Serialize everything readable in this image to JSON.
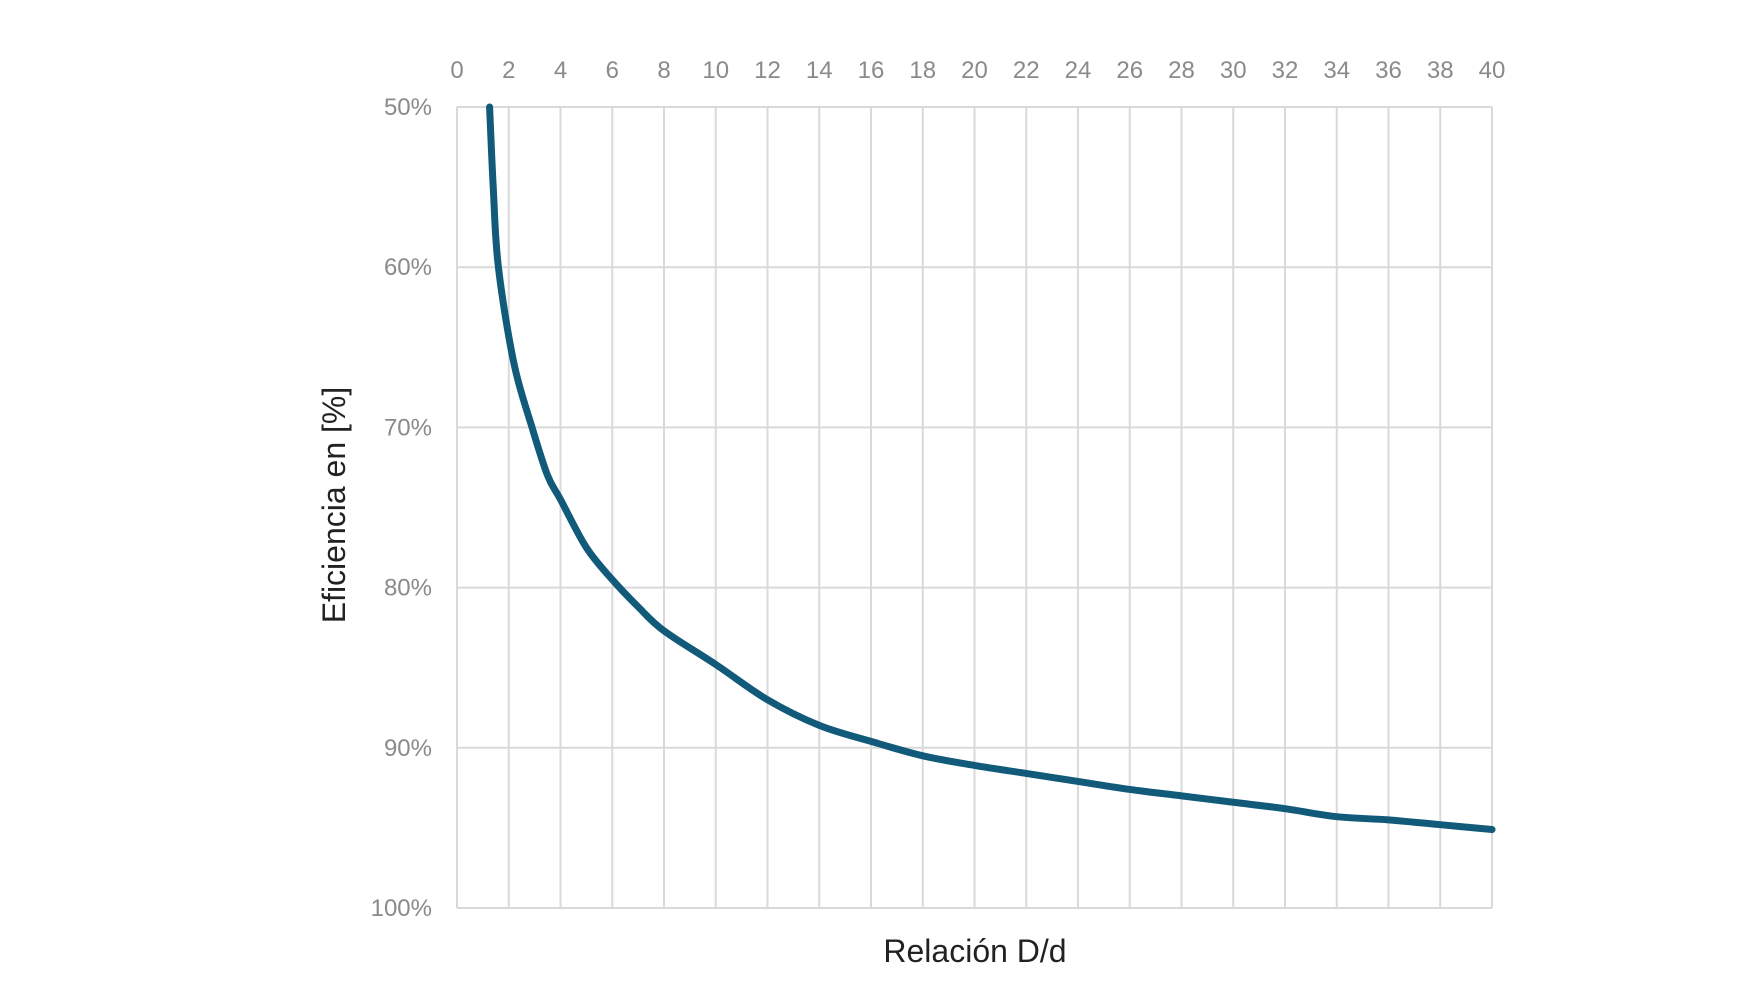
{
  "chart_data": {
    "type": "line",
    "title": "",
    "xlabel": "Relación D/d",
    "ylabel": "Eficiencia en [%]",
    "x_axis_position": "top",
    "y_axis_inverted": true,
    "xlim": [
      0,
      40
    ],
    "ylim": [
      50,
      100
    ],
    "xticks": [
      0,
      2,
      4,
      6,
      8,
      10,
      12,
      14,
      16,
      18,
      20,
      22,
      24,
      26,
      28,
      30,
      32,
      34,
      36,
      38,
      40
    ],
    "yticks": [
      50,
      60,
      70,
      80,
      90,
      100
    ],
    "ytick_labels": [
      "50%",
      "60%",
      "70%",
      "80%",
      "90%",
      "100%"
    ],
    "grid": true,
    "line_color": "#115a7a",
    "series": [
      {
        "x": [
          1.26,
          1.4,
          1.6,
          2.2,
          2.9,
          3.5,
          4,
          5,
          6,
          7,
          8,
          10,
          12,
          14,
          16,
          18,
          20,
          22,
          24,
          26,
          28,
          30,
          32,
          34,
          36,
          38,
          40
        ],
        "y": [
          50,
          55,
          60,
          66,
          70,
          73,
          74.5,
          77.5,
          79.5,
          81.2,
          82.7,
          84.8,
          87,
          88.6,
          89.6,
          90.5,
          91.1,
          91.6,
          92.1,
          92.6,
          93,
          93.4,
          93.8,
          94.3,
          94.5,
          94.8,
          95.1
        ]
      }
    ]
  }
}
